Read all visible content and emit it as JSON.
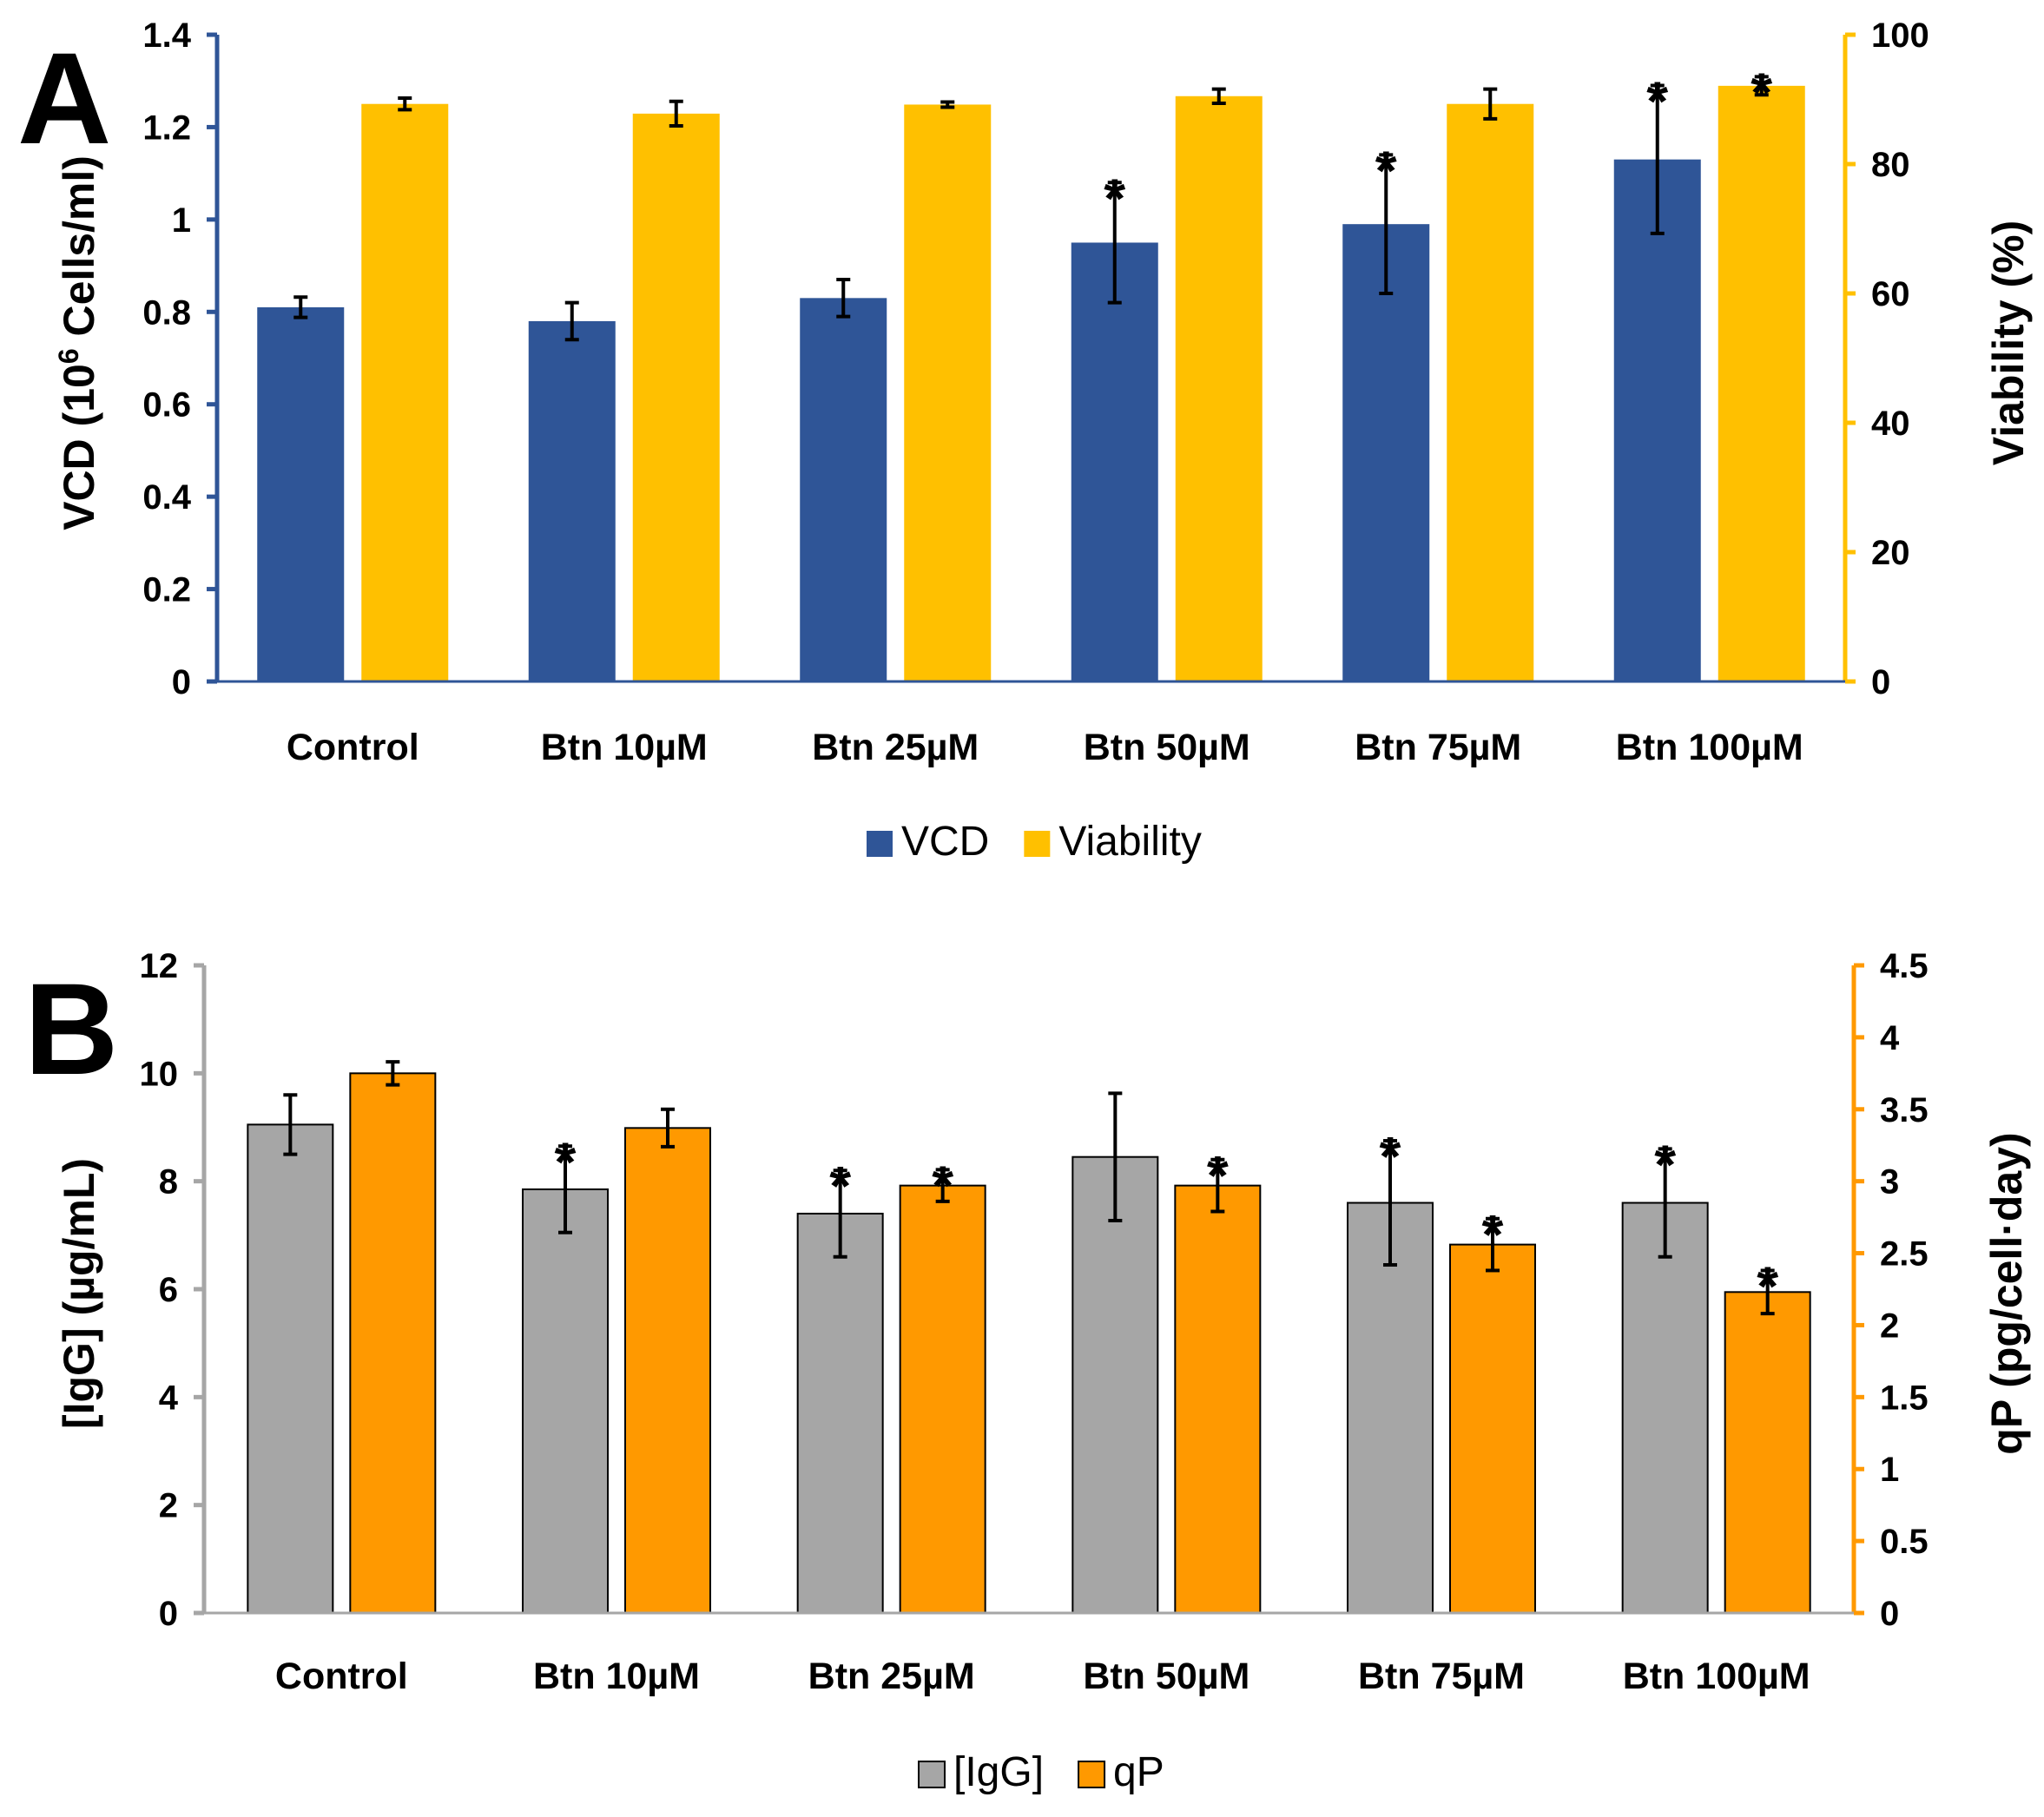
{
  "chart_data": [
    {
      "panel": "A",
      "type": "bar",
      "categories": [
        "Control",
        "Btn 10µM",
        "Btn 25µM",
        "Btn 50µM",
        "Btn 75µM",
        "Btn 100µM"
      ],
      "series": [
        {
          "name": "VCD",
          "axis": "left",
          "color": "#2F5597",
          "values": [
            0.81,
            0.78,
            0.83,
            0.95,
            0.99,
            1.13
          ],
          "errors": [
            0.022,
            0.04,
            0.04,
            0.13,
            0.15,
            0.16
          ],
          "significant": [
            false,
            false,
            false,
            true,
            true,
            true
          ]
        },
        {
          "name": "Viability",
          "axis": "right",
          "color": "#FFC000",
          "values": [
            89.3,
            87.8,
            89.2,
            90.5,
            89.3,
            92.1
          ],
          "errors": [
            0.9,
            1.9,
            0.4,
            1.1,
            2.3,
            1.4
          ],
          "significant": [
            false,
            false,
            false,
            false,
            false,
            true
          ]
        }
      ],
      "y_left": {
        "label_prefix": "VCD (10",
        "label_sup": "6",
        "label_suffix": " Cells/ml)",
        "ylim": [
          0,
          1.4
        ],
        "ticks": [
          "0",
          "0.2",
          "0.4",
          "0.6",
          "0.8",
          "1",
          "1.2",
          "1.4"
        ],
        "color": "#2F5597"
      },
      "y_right": {
        "label": "Viability (%)",
        "ylim": [
          0,
          100
        ],
        "ticks": [
          "0",
          "20",
          "40",
          "60",
          "80",
          "100"
        ],
        "color": "#FFC000"
      },
      "legend": [
        "VCD",
        "Viability"
      ],
      "significance_marker": "*"
    },
    {
      "panel": "B",
      "type": "bar",
      "categories": [
        "Control",
        "Btn 10µM",
        "Btn 25µM",
        "Btn 50µM",
        "Btn 75µM",
        "Btn 100µM"
      ],
      "series": [
        {
          "name": "[IgG]",
          "axis": "left",
          "color": "#A6A6A6",
          "values": [
            9.05,
            7.85,
            7.4,
            8.45,
            7.6,
            7.6
          ],
          "errors": [
            0.55,
            0.8,
            0.8,
            1.18,
            1.15,
            1.0
          ],
          "significant": [
            false,
            true,
            true,
            false,
            true,
            true
          ]
        },
        {
          "name": "qP",
          "axis": "right",
          "color": "#FF9900",
          "values": [
            3.75,
            3.37,
            2.97,
            2.97,
            2.56,
            2.23
          ],
          "errors": [
            0.08,
            0.13,
            0.11,
            0.18,
            0.18,
            0.15
          ],
          "significant": [
            false,
            false,
            true,
            true,
            true,
            true
          ]
        }
      ],
      "y_left": {
        "label": "[IgG] (µg/mL)",
        "ylim": [
          0,
          12
        ],
        "ticks": [
          "0",
          "2",
          "4",
          "6",
          "8",
          "10",
          "12"
        ],
        "color": "#A6A6A6"
      },
      "y_right": {
        "label": "qP (pg/cell·day)",
        "ylim": [
          0,
          4.5
        ],
        "ticks": [
          "0",
          "0.5",
          "1",
          "1.5",
          "2",
          "2.5",
          "3",
          "3.5",
          "4",
          "4.5"
        ],
        "color": "#FF9900"
      },
      "legend": [
        "[IgG]",
        "qP"
      ],
      "significance_marker": "*"
    }
  ]
}
